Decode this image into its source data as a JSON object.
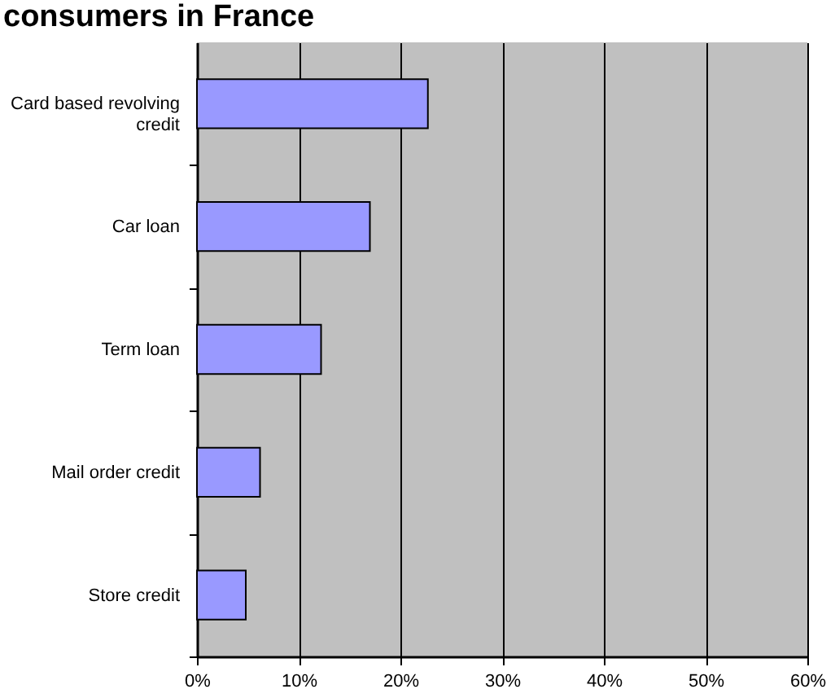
{
  "chart_data": {
    "type": "bar",
    "orientation": "horizontal",
    "title": "consumers in France",
    "categories": [
      "Card based revolving credit",
      "Car loan",
      "Term loan",
      "Mail order credit",
      "Store credit"
    ],
    "values": [
      22.7,
      17.0,
      12.2,
      6.2,
      4.8
    ],
    "color": "#9999ff",
    "xlim": [
      0,
      60
    ],
    "xticks": [
      {
        "value": 0,
        "label": "0%"
      },
      {
        "value": 10,
        "label": "10%"
      },
      {
        "value": 20,
        "label": "20%"
      },
      {
        "value": 30,
        "label": "30%"
      },
      {
        "value": 40,
        "label": "40%"
      },
      {
        "value": 50,
        "label": "50%"
      },
      {
        "value": 60,
        "label": "60%"
      }
    ],
    "grid": "x"
  }
}
